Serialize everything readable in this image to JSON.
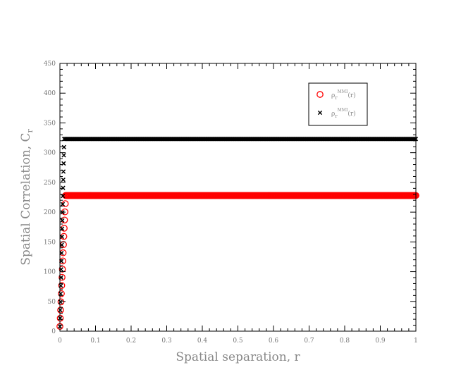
{
  "chart_data": {
    "type": "scatter",
    "xlabel": "Spatial separation, r",
    "ylabel": "Spatial Correlation, C_r",
    "ylabel_main": "Spatial Correlation, C",
    "ylabel_sub": "r",
    "xlim": [
      0,
      1
    ],
    "ylim": [
      0,
      450
    ],
    "x_ticks": [
      0,
      0.1,
      0.2,
      0.3,
      0.4,
      0.5,
      0.6,
      0.7,
      0.8,
      0.9,
      1
    ],
    "x_tick_labels": [
      "0",
      "0.1",
      "0.2",
      "0.3",
      "0.4",
      "0.5",
      "0.6",
      "0.7",
      "0.8",
      "0.9",
      "1"
    ],
    "y_ticks": [
      0,
      50,
      100,
      150,
      200,
      250,
      300,
      350,
      400,
      450
    ],
    "y_tick_labels": [
      "0",
      "50",
      "100",
      "150",
      "200",
      "250",
      "300",
      "350",
      "400",
      "450"
    ],
    "grid": false,
    "legend_position": "top-right",
    "series": [
      {
        "name": "ρ_r^MMI(r)",
        "legend_main": "ρ",
        "legend_sub": "r",
        "legend_sup": "MMI",
        "legend_arg": "(r)",
        "marker": "circle",
        "color": "#ff0000",
        "ramp_end_x": 0.016,
        "plateau_value": 228,
        "plateau_start_x": 0.018,
        "plateau_end_x": 1.0
      },
      {
        "name": "ρ_r^MMI(r)",
        "legend_main": "ρ",
        "legend_sub": "r",
        "legend_sup": "MMI",
        "legend_arg": "(r)",
        "marker": "x",
        "color": "#000000",
        "ramp_end_x": 0.012,
        "plateau_value": 323,
        "plateau_start_x": 0.014,
        "plateau_end_x": 1.0
      }
    ]
  }
}
